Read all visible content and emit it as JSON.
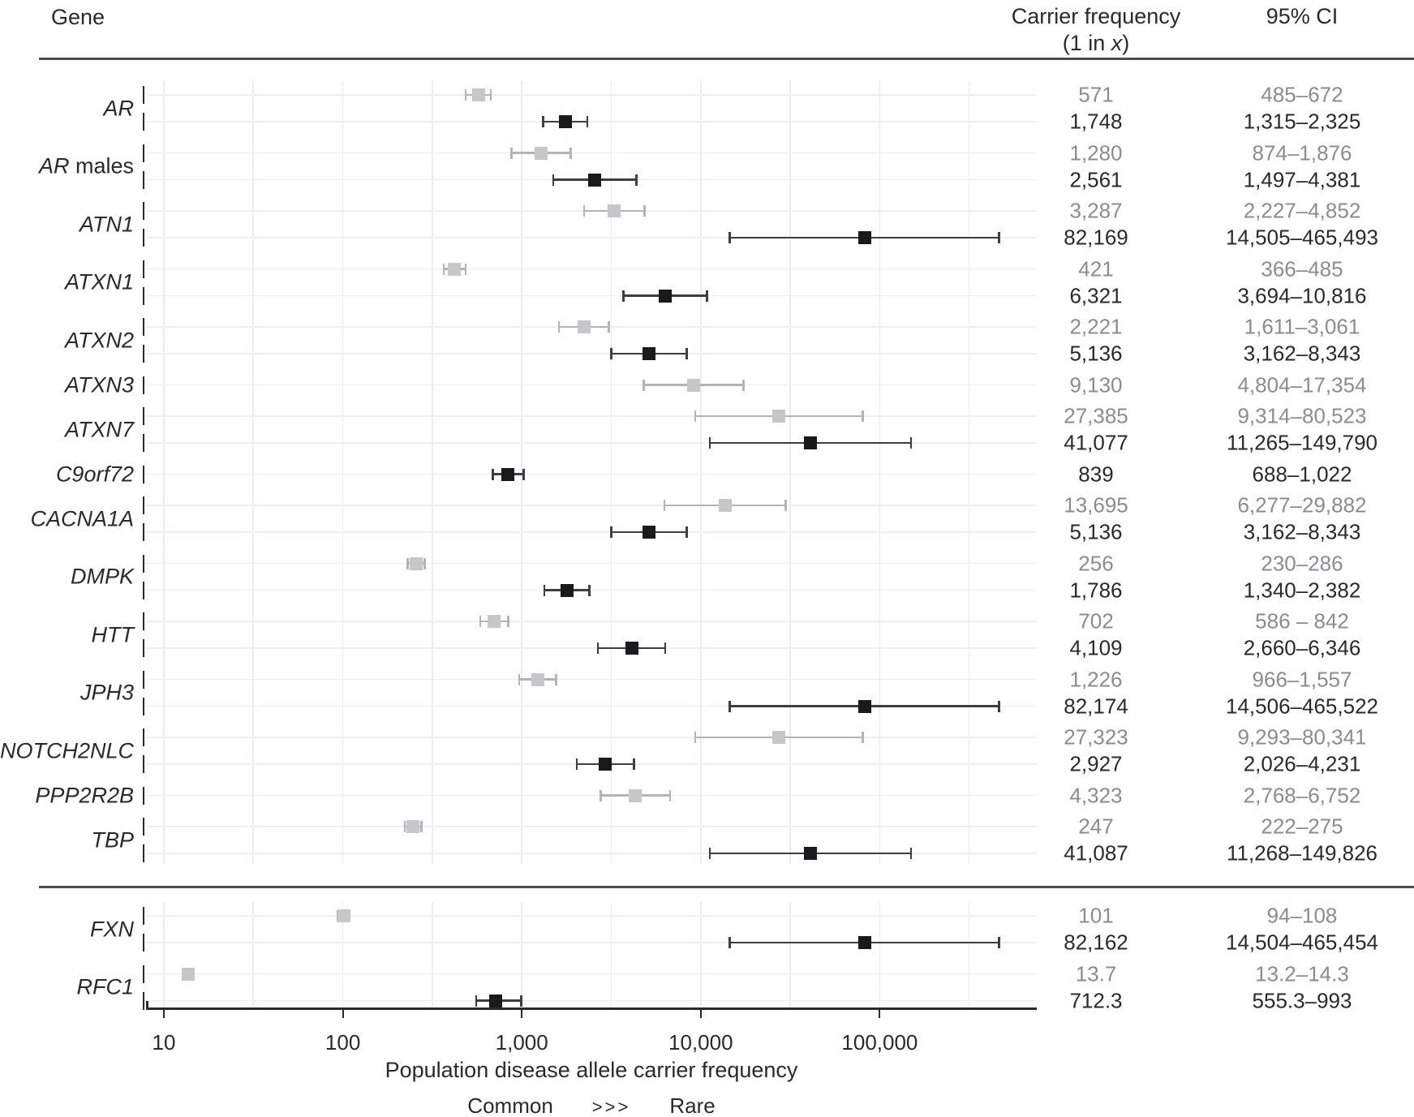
{
  "header": {
    "gene": "Gene",
    "carrier_frequency_line1": "Carrier frequency",
    "cf2_pre": "(1 in ",
    "cf2_x": "x",
    "cf2_post": ")",
    "ci": "95% CI"
  },
  "axis": {
    "title": "Population disease allele carrier frequency",
    "common": "Common",
    "arrows": ">>>",
    "rare": "Rare"
  },
  "chart_data": {
    "type": "forest",
    "x_scale": "log10",
    "xlabel": "Population disease allele carrier frequency",
    "x_annotation": {
      "left": "Common",
      "mid": ">>>",
      "right": "Rare"
    },
    "x_ticks": [
      {
        "label": "10",
        "value": 10
      },
      {
        "label": "100",
        "value": 100
      },
      {
        "label": "1,000",
        "value": 1000
      },
      {
        "label": "10,000",
        "value": 10000
      },
      {
        "label": "100,000",
        "value": 100000
      }
    ],
    "x_minor_gridlines": [
      10,
      31.62,
      100,
      316.23,
      1000,
      3162.3,
      10000,
      31623,
      100000,
      316228
    ],
    "series_colors": {
      "gray": "#c7c7ca",
      "black": "#1a1a1c"
    },
    "columns": {
      "value_header": "Carrier frequency (1 in x)",
      "ci_header": "95% CI"
    },
    "panels": [
      {
        "genes": [
          {
            "name": "AR",
            "suffix": "",
            "entries": [
              {
                "color": "gray",
                "value": 571,
                "value_label": "571",
                "ci_low": 485,
                "ci_high": 672,
                "ci_label": "485–672"
              },
              {
                "color": "black",
                "value": 1748,
                "value_label": "1,748",
                "ci_low": 1315,
                "ci_high": 2325,
                "ci_label": "1,315–2,325"
              }
            ]
          },
          {
            "name": "AR",
            "suffix": " males",
            "entries": [
              {
                "color": "gray",
                "value": 1280,
                "value_label": "1,280",
                "ci_low": 874,
                "ci_high": 1876,
                "ci_label": "874–1,876"
              },
              {
                "color": "black",
                "value": 2561,
                "value_label": "2,561",
                "ci_low": 1497,
                "ci_high": 4381,
                "ci_label": "1,497–4,381"
              }
            ]
          },
          {
            "name": "ATN1",
            "suffix": "",
            "entries": [
              {
                "color": "gray",
                "value": 3287,
                "value_label": "3,287",
                "ci_low": 2227,
                "ci_high": 4852,
                "ci_label": "2,227–4,852"
              },
              {
                "color": "black",
                "value": 82169,
                "value_label": "82,169",
                "ci_low": 14505,
                "ci_high": 465493,
                "ci_label": "14,505–465,493"
              }
            ]
          },
          {
            "name": "ATXN1",
            "suffix": "",
            "entries": [
              {
                "color": "gray",
                "value": 421,
                "value_label": "421",
                "ci_low": 366,
                "ci_high": 485,
                "ci_label": "366–485"
              },
              {
                "color": "black",
                "value": 6321,
                "value_label": "6,321",
                "ci_low": 3694,
                "ci_high": 10816,
                "ci_label": "3,694–10,816"
              }
            ]
          },
          {
            "name": "ATXN2",
            "suffix": "",
            "entries": [
              {
                "color": "gray",
                "value": 2221,
                "value_label": "2,221",
                "ci_low": 1611,
                "ci_high": 3061,
                "ci_label": "1,611–3,061"
              },
              {
                "color": "black",
                "value": 5136,
                "value_label": "5,136",
                "ci_low": 3162,
                "ci_high": 8343,
                "ci_label": "3,162–8,343"
              }
            ]
          },
          {
            "name": "ATXN3",
            "suffix": "",
            "entries": [
              {
                "color": "gray",
                "value": 9130,
                "value_label": "9,130",
                "ci_low": 4804,
                "ci_high": 17354,
                "ci_label": "4,804–17,354"
              }
            ]
          },
          {
            "name": "ATXN7",
            "suffix": "",
            "entries": [
              {
                "color": "gray",
                "value": 27385,
                "value_label": "27,385",
                "ci_low": 9314,
                "ci_high": 80523,
                "ci_label": "9,314–80,523"
              },
              {
                "color": "black",
                "value": 41077,
                "value_label": "41,077",
                "ci_low": 11265,
                "ci_high": 149790,
                "ci_label": "11,265–149,790"
              }
            ]
          },
          {
            "name": "C9orf72",
            "suffix": "",
            "entries": [
              {
                "color": "black",
                "value": 839,
                "value_label": "839",
                "ci_low": 688,
                "ci_high": 1022,
                "ci_label": "688–1,022"
              }
            ]
          },
          {
            "name": "CACNA1A",
            "suffix": "",
            "entries": [
              {
                "color": "gray",
                "value": 13695,
                "value_label": "13,695",
                "ci_low": 6277,
                "ci_high": 29882,
                "ci_label": "6,277–29,882"
              },
              {
                "color": "black",
                "value": 5136,
                "value_label": "5,136",
                "ci_low": 3162,
                "ci_high": 8343,
                "ci_label": "3,162–8,343"
              }
            ]
          },
          {
            "name": "DMPK",
            "suffix": "",
            "entries": [
              {
                "color": "gray",
                "value": 256,
                "value_label": "256",
                "ci_low": 230,
                "ci_high": 286,
                "ci_label": "230–286"
              },
              {
                "color": "black",
                "value": 1786,
                "value_label": "1,786",
                "ci_low": 1340,
                "ci_high": 2382,
                "ci_label": "1,340–2,382"
              }
            ]
          },
          {
            "name": "HTT",
            "suffix": "",
            "entries": [
              {
                "color": "gray",
                "value": 702,
                "value_label": "702",
                "ci_low": 586,
                "ci_high": 842,
                "ci_label": "586 – 842"
              },
              {
                "color": "black",
                "value": 4109,
                "value_label": "4,109",
                "ci_low": 2660,
                "ci_high": 6346,
                "ci_label": "2,660–6,346"
              }
            ]
          },
          {
            "name": "JPH3",
            "suffix": "",
            "entries": [
              {
                "color": "gray",
                "value": 1226,
                "value_label": "1,226",
                "ci_low": 966,
                "ci_high": 1557,
                "ci_label": "966–1,557"
              },
              {
                "color": "black",
                "value": 82174,
                "value_label": "82,174",
                "ci_low": 14506,
                "ci_high": 465522,
                "ci_label": "14,506–465,522"
              }
            ]
          },
          {
            "name": "NOTCH2NLC",
            "suffix": "",
            "entries": [
              {
                "color": "gray",
                "value": 27323,
                "value_label": "27,323",
                "ci_low": 9293,
                "ci_high": 80341,
                "ci_label": "9,293–80,341"
              },
              {
                "color": "black",
                "value": 2927,
                "value_label": "2,927",
                "ci_low": 2026,
                "ci_high": 4231,
                "ci_label": "2,026–4,231"
              }
            ]
          },
          {
            "name": "PPP2R2B",
            "suffix": "",
            "entries": [
              {
                "color": "gray",
                "value": 4323,
                "value_label": "4,323",
                "ci_low": 2768,
                "ci_high": 6752,
                "ci_label": "2,768–6,752"
              }
            ]
          },
          {
            "name": "TBP",
            "suffix": "",
            "entries": [
              {
                "color": "gray",
                "value": 247,
                "value_label": "247",
                "ci_low": 222,
                "ci_high": 275,
                "ci_label": "222–275"
              },
              {
                "color": "black",
                "value": 41087,
                "value_label": "41,087",
                "ci_low": 11268,
                "ci_high": 149826,
                "ci_label": "11,268–149,826"
              }
            ]
          }
        ]
      },
      {
        "genes": [
          {
            "name": "FXN",
            "suffix": "",
            "entries": [
              {
                "color": "gray",
                "value": 101,
                "value_label": "101",
                "ci_low": 94,
                "ci_high": 108,
                "ci_label": "94–108"
              },
              {
                "color": "black",
                "value": 82162,
                "value_label": "82,162",
                "ci_low": 14504,
                "ci_high": 465454,
                "ci_label": "14,504–465,454"
              }
            ]
          },
          {
            "name": "RFC1",
            "suffix": "",
            "entries": [
              {
                "color": "gray",
                "value": 13.7,
                "value_label": "13.7",
                "ci_low": 13.2,
                "ci_high": 14.3,
                "ci_label": "13.2–14.3"
              },
              {
                "color": "black",
                "value": 712.3,
                "value_label": "712.3",
                "ci_low": 555.3,
                "ci_high": 993,
                "ci_label": "555.3–993"
              }
            ]
          }
        ]
      }
    ]
  }
}
